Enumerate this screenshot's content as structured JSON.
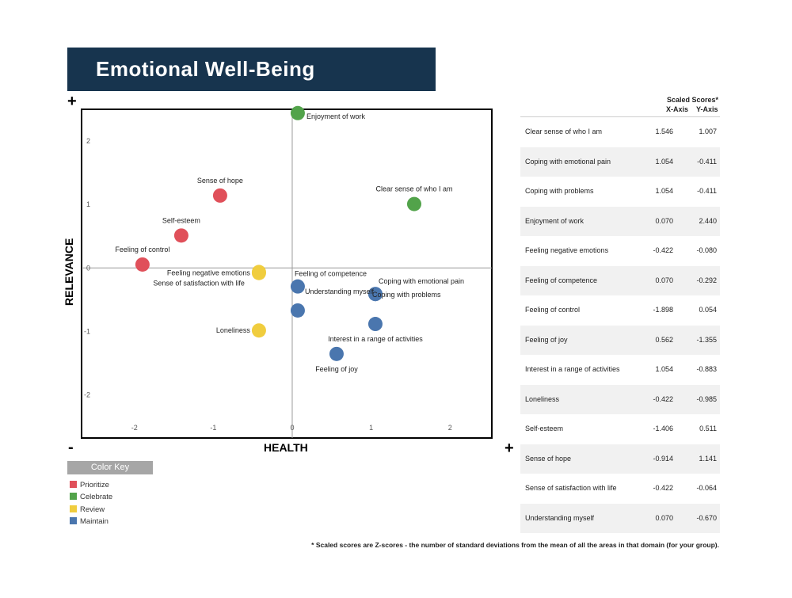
{
  "title": "Emotional Well-Being",
  "axis": {
    "x_title": "HEALTH",
    "y_title": "RELEVANCE",
    "plus": "+",
    "minus": "-"
  },
  "colors": {
    "prioritize": "#e0505a",
    "celebrate": "#52a34a",
    "review": "#f0cd3e",
    "maintain": "#4a76ae",
    "title_bg": "#17344e"
  },
  "chart_data": {
    "type": "scatter",
    "title": "Emotional Well-Being",
    "xlabel": "HEALTH",
    "ylabel": "RELEVANCE",
    "xlim": [
      -2.67,
      2.53
    ],
    "ylim": [
      -2.68,
      2.5
    ],
    "xticks": [
      -2,
      -1,
      0,
      1,
      2
    ],
    "yticks": [
      2,
      1,
      0,
      -1,
      -2
    ],
    "grid": false,
    "points": [
      {
        "label": "Enjoyment of work",
        "x": 0.07,
        "y": 2.44,
        "category": "celebrate",
        "anchor": "right"
      },
      {
        "label": "Clear sense of who I am",
        "x": 1.546,
        "y": 1.007,
        "category": "celebrate",
        "anchor": "above"
      },
      {
        "label": "Sense of hope",
        "x": -0.914,
        "y": 1.141,
        "category": "prioritize",
        "anchor": "above"
      },
      {
        "label": "Self-esteem",
        "x": -1.406,
        "y": 0.511,
        "category": "prioritize",
        "anchor": "above"
      },
      {
        "label": "Feeling of control",
        "x": -1.898,
        "y": 0.054,
        "category": "prioritize",
        "anchor": "above"
      },
      {
        "label": "Feeling negative emotions",
        "x": -0.422,
        "y": -0.08,
        "category": "review",
        "anchor": "left"
      },
      {
        "label": "Sense of satisfaction with life",
        "x": -0.422,
        "y": -0.064,
        "category": "review",
        "anchor": "below-left"
      },
      {
        "label": "Feeling of competence",
        "x": 0.07,
        "y": -0.292,
        "category": "maintain",
        "anchor": "above-right"
      },
      {
        "label": "Coping with emotional pain",
        "x": 1.054,
        "y": -0.411,
        "category": "maintain",
        "anchor": "above-right"
      },
      {
        "label": "Coping with problems",
        "x": 1.054,
        "y": -0.411,
        "category": "maintain",
        "anchor": "right-low"
      },
      {
        "label": "Understanding myself",
        "x": 0.07,
        "y": -0.67,
        "category": "maintain",
        "anchor": "above-right"
      },
      {
        "label": "Interest in a range of activities",
        "x": 1.054,
        "y": -0.883,
        "category": "maintain",
        "anchor": "below"
      },
      {
        "label": "Loneliness",
        "x": -0.422,
        "y": -0.985,
        "category": "review",
        "anchor": "left"
      },
      {
        "label": "Feeling of joy",
        "x": 0.562,
        "y": -1.355,
        "category": "maintain",
        "anchor": "below"
      }
    ]
  },
  "color_key": {
    "title": "Color Key",
    "items": [
      {
        "label": "Prioritize",
        "color": "#e0505a"
      },
      {
        "label": "Celebrate",
        "color": "#52a34a"
      },
      {
        "label": "Review",
        "color": "#f0cd3e"
      },
      {
        "label": "Maintain",
        "color": "#4a76ae"
      }
    ]
  },
  "table": {
    "header": "Scaled Scores*",
    "x_header": "X-Axis",
    "y_header": "Y-Axis",
    "rows": [
      {
        "name": "Clear sense of who I am",
        "x": "1.546",
        "y": "1.007"
      },
      {
        "name": "Coping with emotional pain",
        "x": "1.054",
        "y": "-0.411"
      },
      {
        "name": "Coping with problems",
        "x": "1.054",
        "y": "-0.411"
      },
      {
        "name": "Enjoyment of work",
        "x": "0.070",
        "y": "2.440"
      },
      {
        "name": "Feeling negative emotions",
        "x": "-0.422",
        "y": "-0.080"
      },
      {
        "name": "Feeling of competence",
        "x": "0.070",
        "y": "-0.292"
      },
      {
        "name": "Feeling of control",
        "x": "-1.898",
        "y": "0.054"
      },
      {
        "name": "Feeling of joy",
        "x": "0.562",
        "y": "-1.355"
      },
      {
        "name": "Interest in a range of activities",
        "x": "1.054",
        "y": "-0.883"
      },
      {
        "name": "Loneliness",
        "x": "-0.422",
        "y": "-0.985"
      },
      {
        "name": "Self-esteem",
        "x": "-1.406",
        "y": "0.511"
      },
      {
        "name": "Sense of hope",
        "x": "-0.914",
        "y": "1.141"
      },
      {
        "name": "Sense of satisfaction with life",
        "x": "-0.422",
        "y": "-0.064"
      },
      {
        "name": "Understanding myself",
        "x": "0.070",
        "y": "-0.670"
      }
    ]
  },
  "footnote": "* Scaled scores are Z-scores -  the number of standard deviations from the mean of all the areas in that domain (for your group)."
}
